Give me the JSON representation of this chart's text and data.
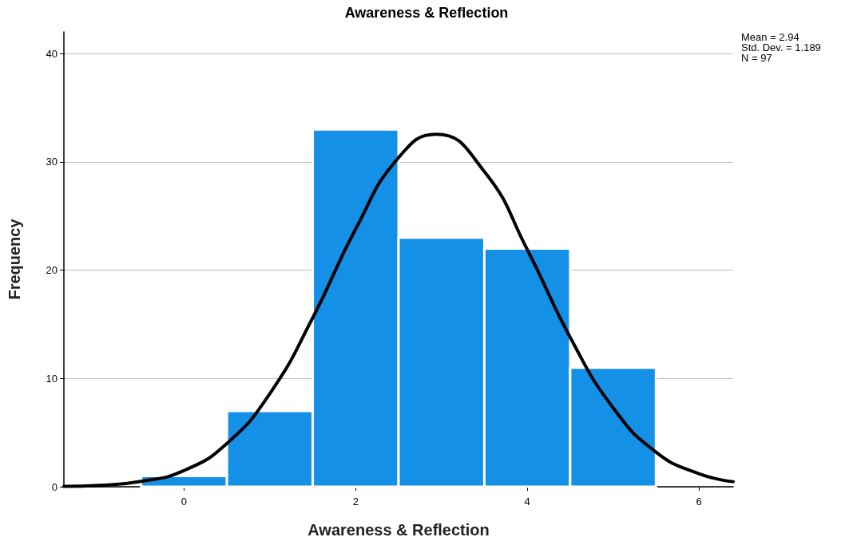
{
  "chart_data": {
    "type": "histogram",
    "title": "Awareness & Reflection",
    "xlabel": "Awareness & Reflection",
    "ylabel": "Frequency",
    "bins": [
      -0.5,
      0.5,
      1.5,
      2.5,
      3.5,
      4.5,
      5.5
    ],
    "series": [
      {
        "color": "#1490e6",
        "values": [
          1,
          7,
          33,
          23,
          22,
          11
        ]
      },
      {
        "type": "line",
        "color": "#000000",
        "x": [
          -1.4,
          -1,
          -0.5,
          0,
          0.5,
          1,
          1.5,
          2,
          2.5,
          2.94,
          3.5,
          4,
          4.5,
          5,
          5.5,
          6,
          6.4
        ],
        "values": [
          0.04,
          0.13,
          0.5,
          1.5,
          4.0,
          8.6,
          15.6,
          23.8,
          30.4,
          32.55,
          29.1,
          21.9,
          13.8,
          7.3,
          3.2,
          1.2,
          0.47
        ]
      }
    ],
    "xlim": [
      -1.4,
      6.4
    ],
    "xticks": [
      0,
      2,
      4,
      6
    ],
    "ylim": [
      0,
      42
    ],
    "yticks": [
      0,
      10,
      20,
      30,
      40
    ],
    "grid": "y",
    "marker": "none",
    "line_style": "solid",
    "annotations": [
      "Mean = 2.94",
      "Std. Dev. = 1.189",
      "N = 97"
    ]
  }
}
